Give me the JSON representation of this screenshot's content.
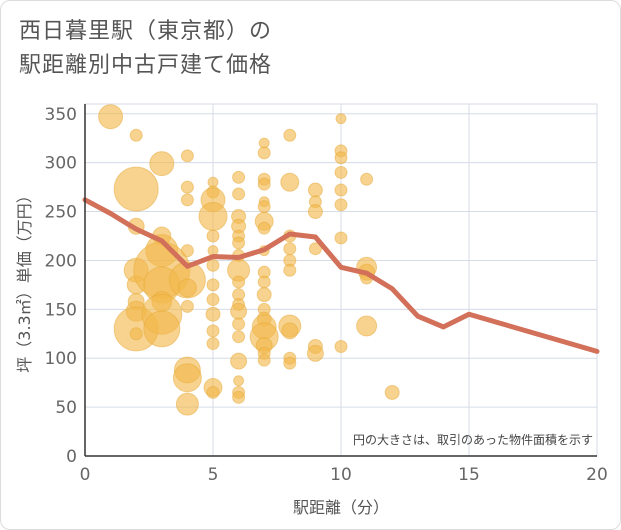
{
  "title_line1": "西日暮里駅（東京都）の",
  "title_line2": "駅距離別中古戸建て価格",
  "chart_data": {
    "type": "scatter",
    "xlabel": "駅距離（分）",
    "ylabel": "坪（3.3㎡）単価（万円）",
    "xlim": [
      0,
      20
    ],
    "ylim": [
      0,
      360
    ],
    "xticks": [
      0,
      5,
      10,
      15,
      20
    ],
    "yticks": [
      0,
      50,
      100,
      150,
      200,
      250,
      300,
      350
    ],
    "grid": true,
    "note": "円の大きさは、取引のあった物件面積を示す",
    "colors": {
      "bubble": "#F2B84B",
      "bubble_stroke": "#E6A93A",
      "line": "#D2705A",
      "grid": "#D5DCE6",
      "axis": "#333333"
    },
    "points": [
      {
        "x": 1,
        "y": 347,
        "s": 12
      },
      {
        "x": 2,
        "y": 328,
        "s": 6
      },
      {
        "x": 2,
        "y": 273,
        "s": 22
      },
      {
        "x": 2,
        "y": 235,
        "s": 8
      },
      {
        "x": 2,
        "y": 190,
        "s": 12
      },
      {
        "x": 2,
        "y": 175,
        "s": 9
      },
      {
        "x": 2,
        "y": 158,
        "s": 8
      },
      {
        "x": 2,
        "y": 148,
        "s": 10
      },
      {
        "x": 2,
        "y": 130,
        "s": 22
      },
      {
        "x": 2,
        "y": 125,
        "s": 6
      },
      {
        "x": 3,
        "y": 299,
        "s": 12
      },
      {
        "x": 3,
        "y": 225,
        "s": 9
      },
      {
        "x": 3,
        "y": 210,
        "s": 16
      },
      {
        "x": 3,
        "y": 190,
        "s": 28
      },
      {
        "x": 3,
        "y": 175,
        "s": 18
      },
      {
        "x": 3,
        "y": 158,
        "s": 10
      },
      {
        "x": 3,
        "y": 145,
        "s": 20
      },
      {
        "x": 3,
        "y": 130,
        "s": 18
      },
      {
        "x": 4,
        "y": 307,
        "s": 6
      },
      {
        "x": 4,
        "y": 275,
        "s": 6
      },
      {
        "x": 4,
        "y": 262,
        "s": 6
      },
      {
        "x": 4,
        "y": 210,
        "s": 6
      },
      {
        "x": 4,
        "y": 180,
        "s": 18
      },
      {
        "x": 4,
        "y": 172,
        "s": 9
      },
      {
        "x": 4,
        "y": 153,
        "s": 6
      },
      {
        "x": 4,
        "y": 88,
        "s": 13
      },
      {
        "x": 4,
        "y": 80,
        "s": 14
      },
      {
        "x": 4,
        "y": 53,
        "s": 11
      },
      {
        "x": 5,
        "y": 280,
        "s": 5
      },
      {
        "x": 5,
        "y": 270,
        "s": 6
      },
      {
        "x": 5,
        "y": 262,
        "s": 12
      },
      {
        "x": 5,
        "y": 245,
        "s": 14
      },
      {
        "x": 5,
        "y": 225,
        "s": 6
      },
      {
        "x": 5,
        "y": 210,
        "s": 5
      },
      {
        "x": 5,
        "y": 195,
        "s": 6
      },
      {
        "x": 5,
        "y": 175,
        "s": 6
      },
      {
        "x": 5,
        "y": 160,
        "s": 6
      },
      {
        "x": 5,
        "y": 145,
        "s": 7
      },
      {
        "x": 5,
        "y": 128,
        "s": 6
      },
      {
        "x": 5,
        "y": 115,
        "s": 6
      },
      {
        "x": 5,
        "y": 70,
        "s": 9
      },
      {
        "x": 5,
        "y": 65,
        "s": 6
      },
      {
        "x": 6,
        "y": 285,
        "s": 6
      },
      {
        "x": 6,
        "y": 268,
        "s": 6
      },
      {
        "x": 6,
        "y": 245,
        "s": 7
      },
      {
        "x": 6,
        "y": 235,
        "s": 7
      },
      {
        "x": 6,
        "y": 225,
        "s": 6
      },
      {
        "x": 6,
        "y": 218,
        "s": 6
      },
      {
        "x": 6,
        "y": 205,
        "s": 6
      },
      {
        "x": 6,
        "y": 190,
        "s": 11
      },
      {
        "x": 6,
        "y": 178,
        "s": 6
      },
      {
        "x": 6,
        "y": 165,
        "s": 6
      },
      {
        "x": 6,
        "y": 155,
        "s": 6
      },
      {
        "x": 6,
        "y": 148,
        "s": 8
      },
      {
        "x": 6,
        "y": 135,
        "s": 6
      },
      {
        "x": 6,
        "y": 122,
        "s": 6
      },
      {
        "x": 6,
        "y": 97,
        "s": 8
      },
      {
        "x": 6,
        "y": 77,
        "s": 5
      },
      {
        "x": 6,
        "y": 65,
        "s": 6
      },
      {
        "x": 6,
        "y": 60,
        "s": 6
      },
      {
        "x": 7,
        "y": 320,
        "s": 5
      },
      {
        "x": 7,
        "y": 310,
        "s": 6
      },
      {
        "x": 7,
        "y": 283,
        "s": 6
      },
      {
        "x": 7,
        "y": 278,
        "s": 6
      },
      {
        "x": 7,
        "y": 260,
        "s": 5
      },
      {
        "x": 7,
        "y": 255,
        "s": 6
      },
      {
        "x": 7,
        "y": 240,
        "s": 9
      },
      {
        "x": 7,
        "y": 233,
        "s": 6
      },
      {
        "x": 7,
        "y": 210,
        "s": 5
      },
      {
        "x": 7,
        "y": 188,
        "s": 6
      },
      {
        "x": 7,
        "y": 178,
        "s": 6
      },
      {
        "x": 7,
        "y": 165,
        "s": 7
      },
      {
        "x": 7,
        "y": 150,
        "s": 6
      },
      {
        "x": 7,
        "y": 140,
        "s": 7
      },
      {
        "x": 7,
        "y": 132,
        "s": 12
      },
      {
        "x": 7,
        "y": 122,
        "s": 14
      },
      {
        "x": 7,
        "y": 113,
        "s": 8
      },
      {
        "x": 7,
        "y": 105,
        "s": 6
      },
      {
        "x": 7,
        "y": 98,
        "s": 6
      },
      {
        "x": 8,
        "y": 328,
        "s": 6
      },
      {
        "x": 8,
        "y": 280,
        "s": 9
      },
      {
        "x": 8,
        "y": 225,
        "s": 6
      },
      {
        "x": 8,
        "y": 212,
        "s": 6
      },
      {
        "x": 8,
        "y": 200,
        "s": 6
      },
      {
        "x": 8,
        "y": 190,
        "s": 6
      },
      {
        "x": 8,
        "y": 133,
        "s": 11
      },
      {
        "x": 8,
        "y": 128,
        "s": 8
      },
      {
        "x": 8,
        "y": 100,
        "s": 6
      },
      {
        "x": 8,
        "y": 95,
        "s": 6
      },
      {
        "x": 9,
        "y": 272,
        "s": 7
      },
      {
        "x": 9,
        "y": 260,
        "s": 6
      },
      {
        "x": 9,
        "y": 250,
        "s": 7
      },
      {
        "x": 9,
        "y": 212,
        "s": 6
      },
      {
        "x": 9,
        "y": 112,
        "s": 7
      },
      {
        "x": 9,
        "y": 105,
        "s": 8
      },
      {
        "x": 10,
        "y": 345,
        "s": 5
      },
      {
        "x": 10,
        "y": 312,
        "s": 6
      },
      {
        "x": 10,
        "y": 305,
        "s": 6
      },
      {
        "x": 10,
        "y": 290,
        "s": 6
      },
      {
        "x": 10,
        "y": 272,
        "s": 6
      },
      {
        "x": 10,
        "y": 257,
        "s": 6
      },
      {
        "x": 10,
        "y": 223,
        "s": 6
      },
      {
        "x": 10,
        "y": 112,
        "s": 6
      },
      {
        "x": 11,
        "y": 283,
        "s": 6
      },
      {
        "x": 11,
        "y": 193,
        "s": 10
      },
      {
        "x": 11,
        "y": 188,
        "s": 8
      },
      {
        "x": 11,
        "y": 182,
        "s": 6
      },
      {
        "x": 11,
        "y": 133,
        "s": 10
      },
      {
        "x": 12,
        "y": 65,
        "s": 7
      }
    ],
    "series": [
      {
        "x": [
          0,
          1,
          2,
          3,
          4,
          5,
          6,
          7,
          8,
          9,
          10,
          11,
          12,
          13,
          14,
          15,
          20
        ],
        "values": [
          262,
          248,
          232,
          220,
          194,
          204,
          203,
          211,
          227,
          224,
          193,
          187,
          171,
          143,
          132,
          145,
          107
        ]
      }
    ]
  }
}
